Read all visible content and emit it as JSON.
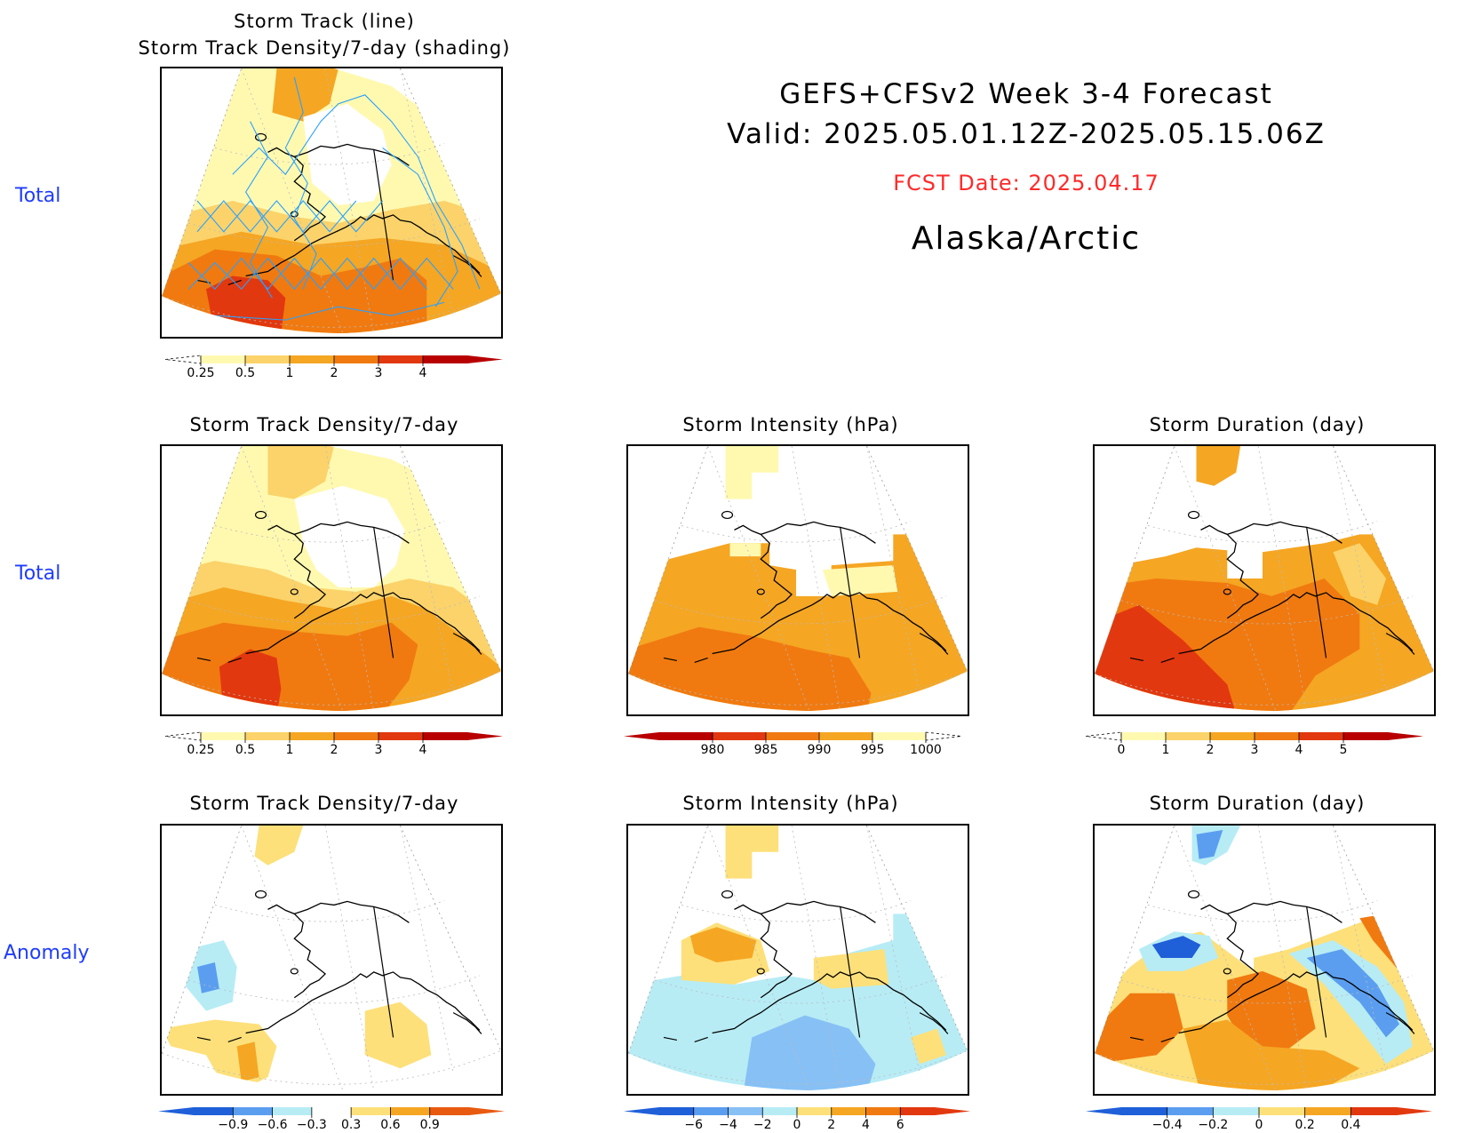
{
  "header": {
    "title": "GEFS+CFSv2 Week 3-4 Forecast",
    "valid": "Valid: 2025.05.01.12Z-2025.05.15.06Z",
    "fcst_date": "FCST Date: 2025.04.17",
    "region": "Alaska/Arctic"
  },
  "colors": {
    "row_label": "#1f3cff",
    "fcst_date": "#ff2a2a",
    "track_line": "#2aa0ff"
  },
  "rows": {
    "row1_label": "Total",
    "row2_label": "Total",
    "row3_label": "Anomaly"
  },
  "panels": {
    "p1": {
      "title_line1": "Storm Track (line)",
      "title_line2": "Storm Track Density/7-day (shading)"
    },
    "p2": {
      "title": "Storm Track Density/7-day"
    },
    "p3": {
      "title": "Storm Intensity (hPa)"
    },
    "p4": {
      "title": "Storm Duration (day)"
    },
    "p5": {
      "title": "Storm Track Density/7-day"
    },
    "p6": {
      "title": "Storm Intensity (hPa)"
    },
    "p7": {
      "title": "Storm Duration (day)"
    }
  },
  "colorbars": {
    "density_total": {
      "labels": [
        "0.25",
        "0.5",
        "1",
        "2",
        "3",
        "4"
      ],
      "colors": [
        "#fff9b0",
        "#fbd36a",
        "#f5a623",
        "#f07a10",
        "#e2380f",
        "#b80000"
      ]
    },
    "intensity_total": {
      "labels": [
        "980",
        "985",
        "990",
        "995",
        "1000"
      ],
      "colors": [
        "#b80000",
        "#e2380f",
        "#f07a10",
        "#f5a623",
        "#fff9b0"
      ]
    },
    "duration_total": {
      "labels": [
        "0",
        "1",
        "2",
        "3",
        "4",
        "5"
      ],
      "colors": [
        "#fff9b0",
        "#fbd36a",
        "#f5a623",
        "#f07a10",
        "#e2380f",
        "#b80000"
      ]
    },
    "density_anom": {
      "labels": [
        "−0.9",
        "−0.6",
        "−0.3",
        "0.3",
        "0.6",
        "0.9"
      ],
      "colors": [
        "#1f5fd8",
        "#5b9ef0",
        "#b7ecf5",
        "#ffffff",
        "#fde07a",
        "#f5a623",
        "#e85a10"
      ]
    },
    "intensity_anom": {
      "labels": [
        "−6",
        "−4",
        "−2",
        "0",
        "2",
        "4",
        "6"
      ],
      "colors": [
        "#1f5fd8",
        "#5b9ef0",
        "#87c0f5",
        "#b7ecf5",
        "#fde07a",
        "#f5a623",
        "#f07a10",
        "#e2380f"
      ]
    },
    "duration_anom": {
      "labels": [
        "−0.4",
        "−0.2",
        "0",
        "0.2",
        "0.4"
      ],
      "colors": [
        "#1f5fd8",
        "#5b9ef0",
        "#b7ecf5",
        "#fde07a",
        "#f5a623",
        "#e2380f"
      ]
    }
  }
}
